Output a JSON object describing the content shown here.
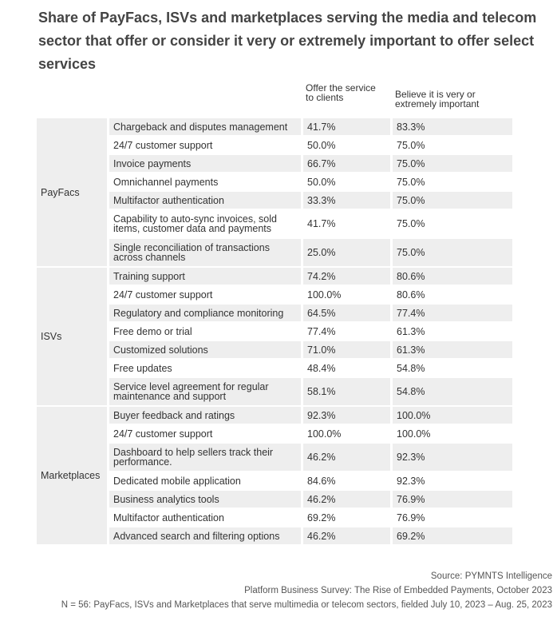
{
  "chart_data": {
    "type": "table",
    "title": "Share of PayFacs, ISVs and marketplaces serving the media and telecom sector that offer or consider it very or extremely important to offer select services",
    "columns": [
      "Offer the service to clients",
      "Believe it is very or extremely important"
    ],
    "groups": [
      {
        "name": "PayFacs",
        "rows": [
          {
            "service": "Chargeback and disputes management",
            "offer": "41.7%",
            "believe": "83.3%"
          },
          {
            "service": "24/7 customer support",
            "offer": "50.0%",
            "believe": "75.0%"
          },
          {
            "service": "Invoice payments",
            "offer": "66.7%",
            "believe": "75.0%"
          },
          {
            "service": "Omnichannel payments",
            "offer": "50.0%",
            "believe": "75.0%"
          },
          {
            "service": "Multifactor authentication",
            "offer": "33.3%",
            "believe": "75.0%"
          },
          {
            "service": "Capability to auto-sync invoices, sold items, customer data and payments",
            "offer": "41.7%",
            "believe": "75.0%"
          },
          {
            "service": "Single reconciliation of transactions across channels",
            "offer": "25.0%",
            "believe": "75.0%"
          }
        ]
      },
      {
        "name": "ISVs",
        "rows": [
          {
            "service": "Training support",
            "offer": "74.2%",
            "believe": "80.6%"
          },
          {
            "service": "24/7 customer support",
            "offer": "100.0%",
            "believe": "80.6%"
          },
          {
            "service": "Regulatory and compliance monitoring",
            "offer": "64.5%",
            "believe": "77.4%"
          },
          {
            "service": "Free demo or trial",
            "offer": "77.4%",
            "believe": "61.3%"
          },
          {
            "service": "Customized solutions",
            "offer": "71.0%",
            "believe": "61.3%"
          },
          {
            "service": "Free updates",
            "offer": "48.4%",
            "believe": "54.8%"
          },
          {
            "service": "Service level agreement for regular maintenance and support",
            "offer": "58.1%",
            "believe": "54.8%"
          }
        ]
      },
      {
        "name": "Marketplaces",
        "rows": [
          {
            "service": "Buyer feedback and ratings",
            "offer": "92.3%",
            "believe": "100.0%"
          },
          {
            "service": "24/7 customer support",
            "offer": "100.0%",
            "believe": "100.0%"
          },
          {
            "service": "Dashboard to help sellers track their performance.",
            "offer": "46.2%",
            "believe": "92.3%"
          },
          {
            "service": "Dedicated mobile application",
            "offer": "84.6%",
            "believe": "92.3%"
          },
          {
            "service": "Business analytics tools",
            "offer": "46.2%",
            "believe": "76.9%"
          },
          {
            "service": "Multifactor authentication",
            "offer": "69.2%",
            "believe": "76.9%"
          },
          {
            "service": "Advanced search and filtering options",
            "offer": "46.2%",
            "believe": "69.2%"
          }
        ]
      }
    ]
  },
  "footer": {
    "source": "Source: PYMNTS Intelligence",
    "survey": "Platform Business Survey: The Rise of Embedded Payments, October 2023",
    "note": "N = 56: PayFacs, ISVs and Marketplaces that serve multimedia or telecom sectors, fielded July 10, 2023 – Aug. 25, 2023"
  },
  "colors": {
    "stripe": "#eeeeee",
    "text": "#333333",
    "title": "#444444"
  }
}
